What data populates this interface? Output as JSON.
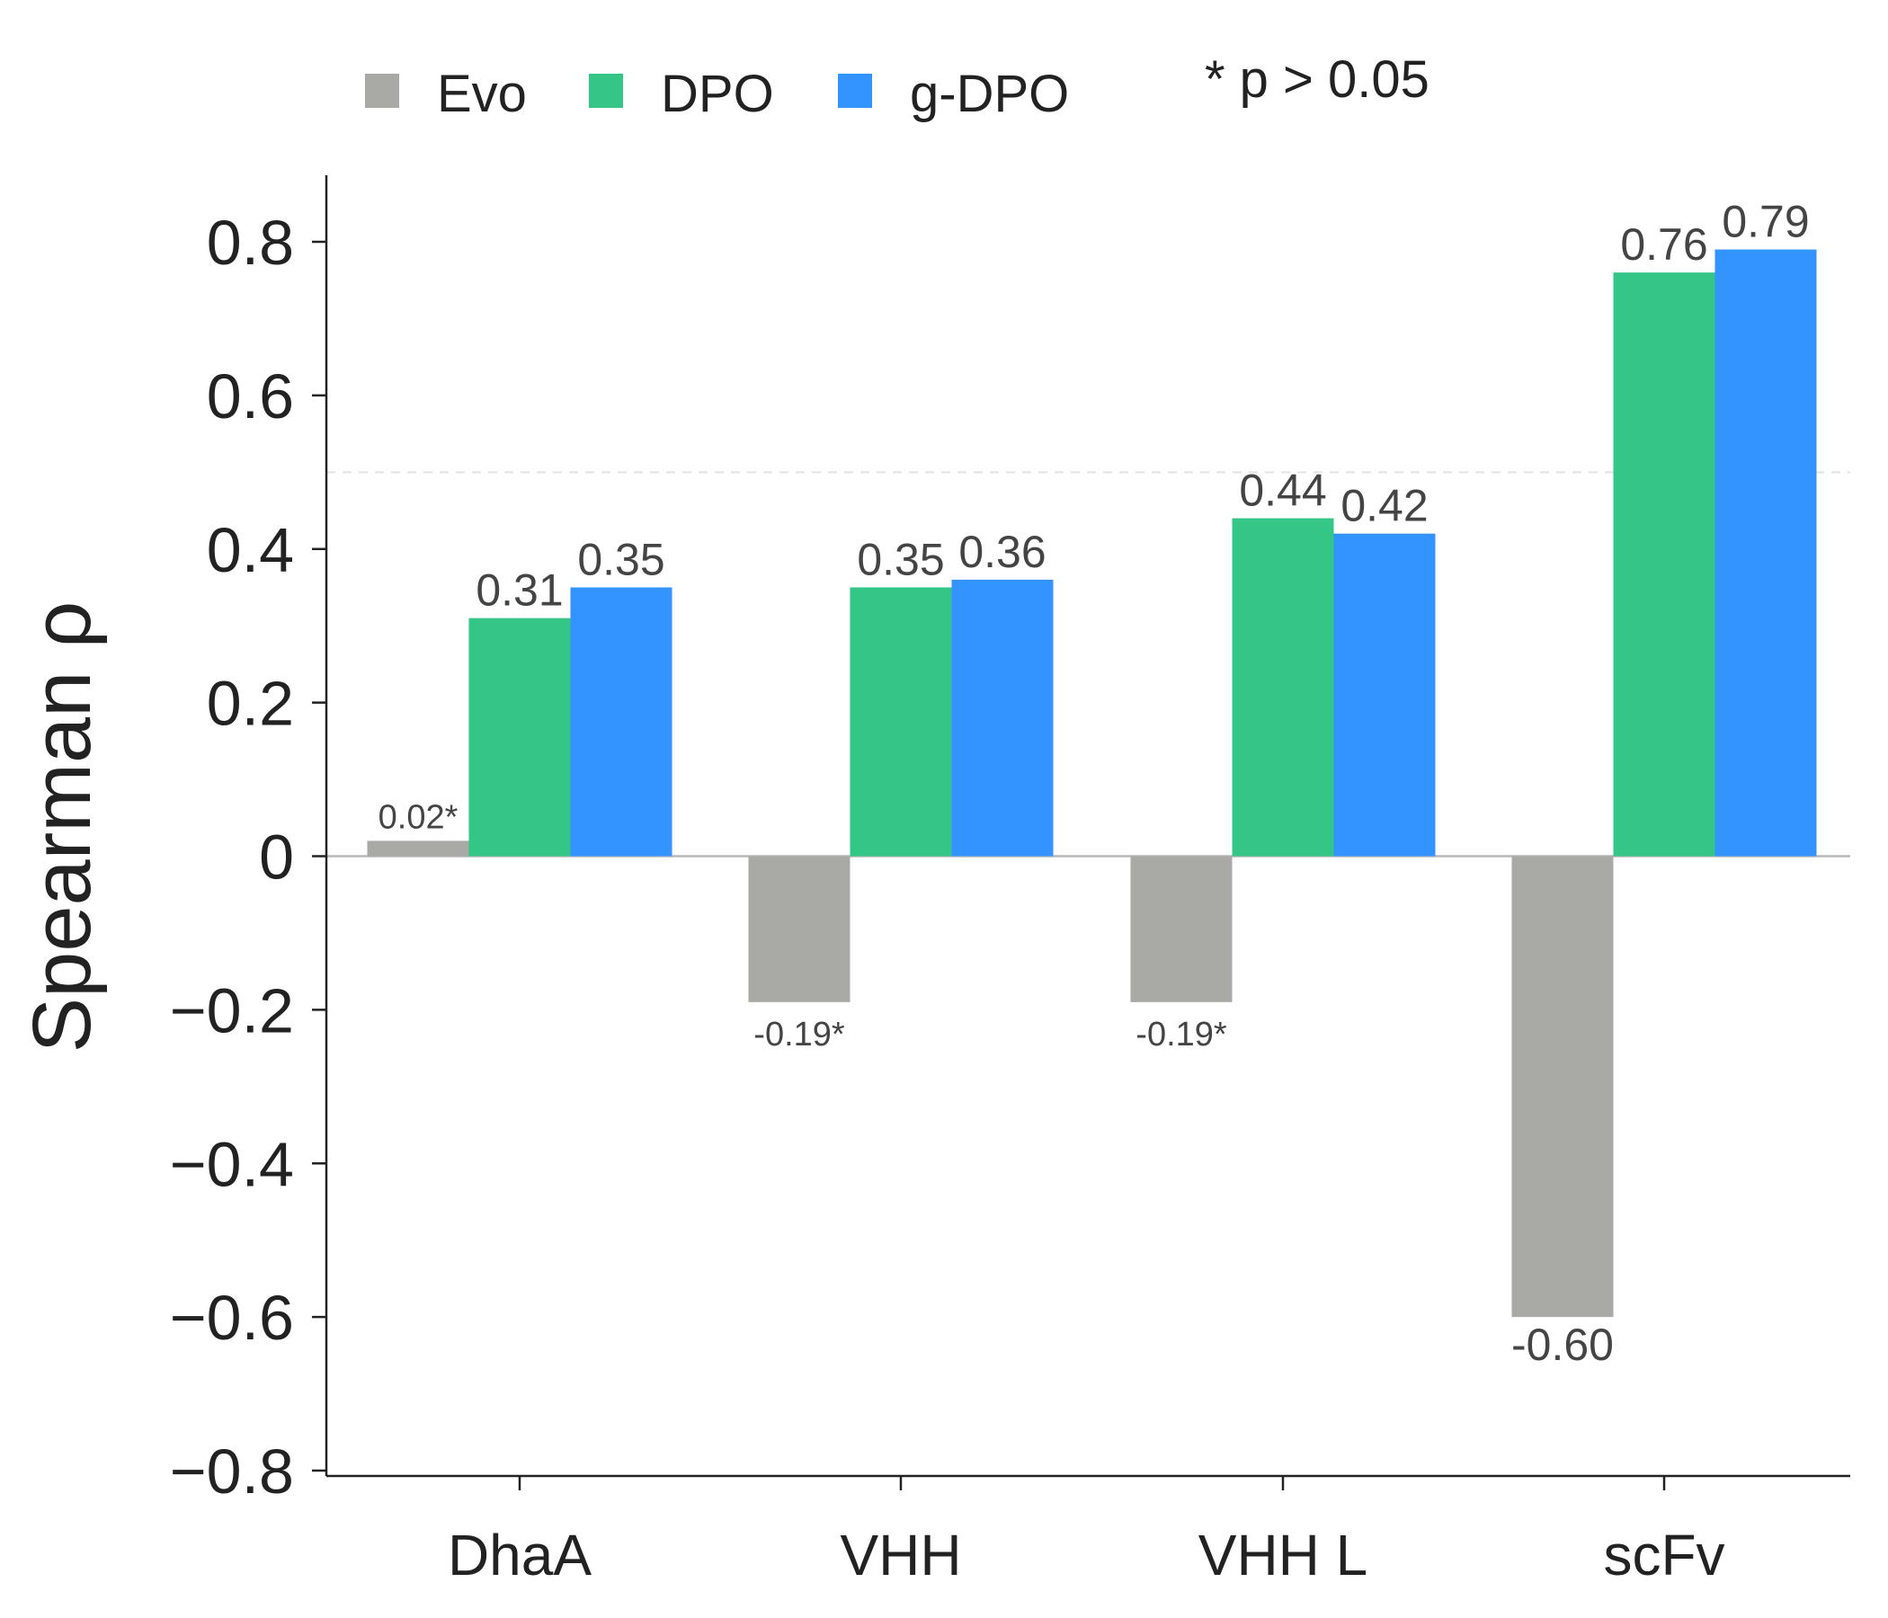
{
  "chart_data": {
    "type": "bar",
    "categories": [
      "DhaA",
      "VHH",
      "VHH L",
      "scFv"
    ],
    "series": [
      {
        "name": "Evo",
        "color": "#a9a9a5",
        "values": [
          0.02,
          -0.19,
          -0.19,
          -0.6
        ],
        "labels": [
          "0.02*",
          "-0.19*",
          "-0.19*",
          "-0.60"
        ]
      },
      {
        "name": "DPO",
        "color": "#33c686",
        "values": [
          0.31,
          0.35,
          0.44,
          0.76
        ],
        "labels": [
          "0.31",
          "0.35",
          "0.44",
          "0.76"
        ]
      },
      {
        "name": "g-DPO",
        "color": "#3393ff",
        "values": [
          0.35,
          0.36,
          0.42,
          0.79
        ],
        "labels": [
          "0.35",
          "0.36",
          "0.42",
          "0.79"
        ]
      }
    ],
    "title": "",
    "xlabel": "",
    "ylabel": "Spearman ρ",
    "ylim": [
      -0.8,
      0.88
    ],
    "yticks": [
      -0.8,
      -0.6,
      -0.4,
      -0.2,
      0,
      0.2,
      0.4,
      0.6,
      0.8
    ],
    "ytick_labels": [
      "−0.8",
      "−0.6",
      "−0.4",
      "−0.2",
      "0",
      "0.2",
      "0.4",
      "0.6",
      "0.8"
    ],
    "reference_line": 0.5,
    "legend_position": "top",
    "note": "* p > 0.05"
  }
}
